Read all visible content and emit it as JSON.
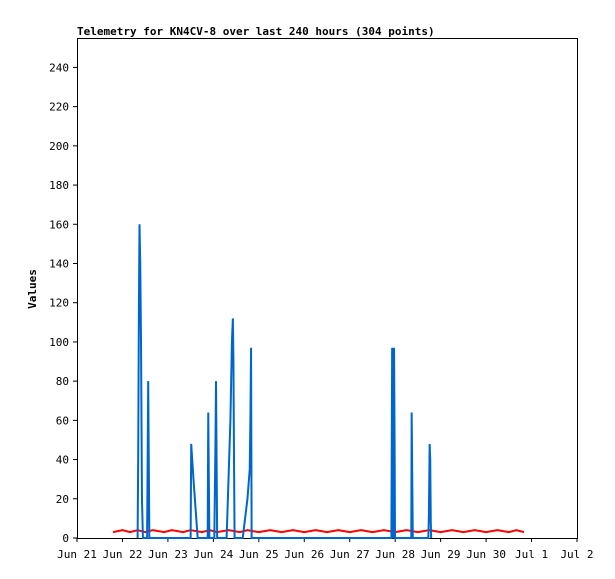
{
  "chart_data": {
    "type": "line",
    "title": "Telemetry for KN4CV-8 over last 240 hours (304 points)",
    "ylabel": "Values",
    "xlabel": "",
    "ylim": [
      0,
      255
    ],
    "yticks": [
      0,
      20,
      40,
      60,
      80,
      100,
      120,
      140,
      160,
      180,
      200,
      220,
      240
    ],
    "xlim": [
      0,
      240
    ],
    "xticks": [
      {
        "t": 0,
        "label": "Jun 21"
      },
      {
        "t": 24,
        "label": "Jun 22"
      },
      {
        "t": 48,
        "label": "Jun 23"
      },
      {
        "t": 72,
        "label": "Jun 24"
      },
      {
        "t": 96,
        "label": "Jun 25"
      },
      {
        "t": 120,
        "label": "Jun 26"
      },
      {
        "t": 144,
        "label": "Jun 27"
      },
      {
        "t": 168,
        "label": "Jun 28"
      },
      {
        "t": 192,
        "label": "Jun 29"
      },
      {
        "t": 216,
        "label": "Jun 30"
      },
      {
        "t": 240,
        "label": "Jul 1"
      },
      {
        "t": 264,
        "label": "Jul 2"
      }
    ],
    "grid": false,
    "series": [
      {
        "color": "#ff0000",
        "values": [
          [
            19,
            3
          ],
          [
            24,
            4
          ],
          [
            28,
            3
          ],
          [
            32,
            4
          ],
          [
            36,
            3
          ],
          [
            40,
            4
          ],
          [
            46,
            3
          ],
          [
            50,
            4
          ],
          [
            56,
            3
          ],
          [
            60,
            4
          ],
          [
            66,
            3
          ],
          [
            70,
            4
          ],
          [
            74,
            3
          ],
          [
            80,
            4
          ],
          [
            86,
            3
          ],
          [
            90,
            4
          ],
          [
            96,
            3
          ],
          [
            102,
            4
          ],
          [
            108,
            3
          ],
          [
            114,
            4
          ],
          [
            120,
            3
          ],
          [
            126,
            4
          ],
          [
            132,
            3
          ],
          [
            138,
            4
          ],
          [
            144,
            3
          ],
          [
            150,
            4
          ],
          [
            156,
            3
          ],
          [
            162,
            4
          ],
          [
            168,
            3
          ],
          [
            174,
            4
          ],
          [
            180,
            3
          ],
          [
            186,
            4
          ],
          [
            192,
            3
          ],
          [
            198,
            4
          ],
          [
            204,
            3
          ],
          [
            210,
            4
          ],
          [
            216,
            3
          ],
          [
            222,
            4
          ],
          [
            228,
            3
          ],
          [
            232,
            4
          ],
          [
            236,
            3
          ]
        ]
      },
      {
        "color": "#0066cc",
        "values": [
          [
            32,
            0
          ],
          [
            32.3,
            40
          ],
          [
            32.7,
            120
          ],
          [
            33.0,
            160
          ],
          [
            33.4,
            140
          ],
          [
            33.8,
            100
          ],
          [
            34.3,
            20
          ],
          [
            34.8,
            0
          ],
          [
            37.0,
            0
          ],
          [
            37.3,
            40
          ],
          [
            37.6,
            80
          ],
          [
            37.9,
            40
          ],
          [
            38.2,
            0
          ],
          [
            60.0,
            0
          ],
          [
            60.3,
            48
          ],
          [
            61.5,
            30
          ],
          [
            62.6,
            15
          ],
          [
            63.7,
            0
          ],
          [
            69.0,
            0
          ],
          [
            69.3,
            64
          ],
          [
            69.6,
            30
          ],
          [
            69.9,
            0
          ],
          [
            72.5,
            0
          ],
          [
            72.8,
            24
          ],
          [
            73.1,
            48
          ],
          [
            73.4,
            80
          ],
          [
            73.7,
            40
          ],
          [
            74.0,
            0
          ],
          [
            79.0,
            0
          ],
          [
            80.0,
            30
          ],
          [
            81.0,
            60
          ],
          [
            81.8,
            100
          ],
          [
            82.3,
            112
          ],
          [
            82.6,
            90
          ],
          [
            82.9,
            40
          ],
          [
            83.2,
            0
          ],
          [
            87.5,
            0
          ],
          [
            90.0,
            20
          ],
          [
            91.2,
            35
          ],
          [
            91.6,
            64
          ],
          [
            91.9,
            97
          ],
          [
            92.2,
            0
          ],
          [
            166.0,
            0
          ],
          [
            166.2,
            48
          ],
          [
            166.4,
            97
          ],
          [
            166.7,
            64
          ],
          [
            166.9,
            0
          ],
          [
            167.1,
            48
          ],
          [
            167.4,
            97
          ],
          [
            167.7,
            48
          ],
          [
            167.9,
            0
          ],
          [
            176.5,
            0
          ],
          [
            176.7,
            64
          ],
          [
            177.0,
            32
          ],
          [
            177.3,
            0
          ],
          [
            185.5,
            0
          ],
          [
            185.8,
            12
          ],
          [
            186.2,
            48
          ],
          [
            186.5,
            40
          ],
          [
            186.8,
            8
          ],
          [
            187.0,
            0
          ]
        ]
      }
    ]
  }
}
